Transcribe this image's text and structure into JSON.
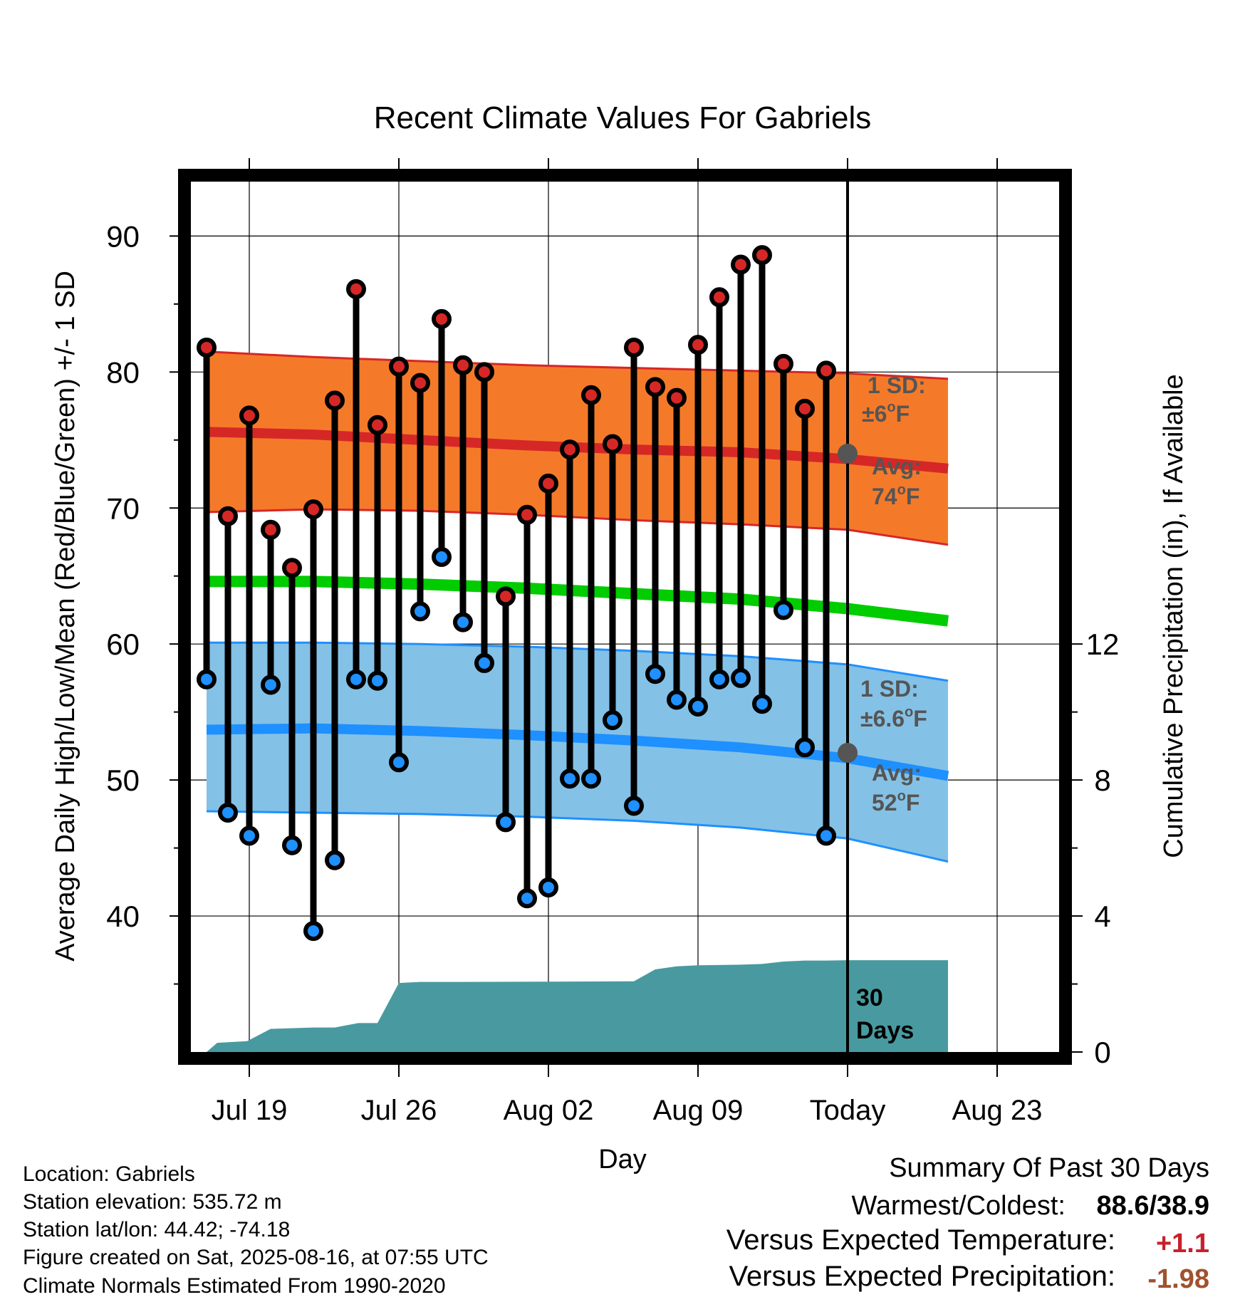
{
  "chart_data": {
    "type": "line",
    "title": "Recent Climate Values For Gabriels",
    "xlabel": "Day",
    "ylabel": "Average Daily High/Low/Mean (Red/Blue/Green) +/- 1 SD",
    "y2label": "Cumulative Precipitation (in), If Available",
    "ylim": [
      30,
      94
    ],
    "y2lim": [
      0,
      18
    ],
    "xlim": [
      0,
      34.7
    ],
    "grid": true,
    "x_ticks": [
      {
        "x": 2,
        "label": "Jul 19"
      },
      {
        "x": 9,
        "label": "Jul 26"
      },
      {
        "x": 16,
        "label": "Aug 02"
      },
      {
        "x": 23,
        "label": "Aug 09"
      },
      {
        "x": 30,
        "label": "Today"
      },
      {
        "x": 37,
        "label": "Aug 23"
      }
    ],
    "y_ticks": [
      40,
      50,
      60,
      70,
      80,
      90
    ],
    "y2_ticks": [
      0,
      4,
      8,
      12
    ],
    "today_x": 30,
    "daily": {
      "x": [
        0,
        1,
        2,
        3,
        4,
        5,
        6,
        7,
        8,
        9,
        10,
        11,
        12,
        13,
        14,
        15,
        16,
        17,
        18,
        19,
        20,
        21,
        22,
        23,
        24,
        25,
        26,
        27,
        28,
        29
      ],
      "highs": [
        81.8,
        69.4,
        76.8,
        68.4,
        65.6,
        69.9,
        77.9,
        86.1,
        76.1,
        80.4,
        79.2,
        83.9,
        80.5,
        80.0,
        63.5,
        69.5,
        71.8,
        74.3,
        78.3,
        74.7,
        81.8,
        78.9,
        78.1,
        82.0,
        85.5,
        87.9,
        88.6,
        80.6,
        77.3,
        80.1
      ],
      "lows": [
        57.4,
        47.6,
        45.9,
        57.0,
        45.2,
        38.9,
        44.1,
        57.4,
        57.3,
        51.3,
        62.4,
        66.4,
        61.6,
        58.6,
        46.9,
        41.3,
        42.1,
        50.1,
        50.1,
        54.4,
        48.1,
        57.8,
        55.9,
        55.4,
        57.4,
        57.5,
        55.6,
        62.5,
        52.4,
        45.9
      ]
    },
    "normals": {
      "x": [
        0,
        5,
        10,
        15,
        20,
        25,
        30,
        34.7
      ],
      "avg_high": [
        75.6,
        75.4,
        75.0,
        74.6,
        74.3,
        74.1,
        73.6,
        72.9
      ],
      "high_plus_sd": [
        81.5,
        81.1,
        80.8,
        80.5,
        80.3,
        80.1,
        79.9,
        79.5
      ],
      "high_minus_sd": [
        69.7,
        69.9,
        69.8,
        69.5,
        69.1,
        68.8,
        68.4,
        67.3
      ],
      "mean": [
        64.6,
        64.6,
        64.4,
        64.1,
        63.7,
        63.3,
        62.6,
        61.7
      ],
      "avg_low": [
        53.7,
        53.8,
        53.6,
        53.3,
        52.9,
        52.4,
        51.6,
        50.3
      ],
      "low_plus_sd": [
        60.1,
        60.1,
        60.0,
        59.8,
        59.5,
        59.1,
        58.5,
        57.3
      ],
      "low_minus_sd": [
        47.7,
        47.6,
        47.5,
        47.3,
        47.0,
        46.5,
        45.7,
        44.0
      ]
    },
    "precip_cumulative": {
      "x": [
        0,
        0.5,
        1.9,
        3,
        5,
        6,
        7.1,
        8,
        9,
        10,
        12,
        16,
        20,
        21,
        22,
        23,
        25,
        26,
        27,
        28,
        29,
        30,
        34.7
      ],
      "values": [
        0.0,
        0.27,
        0.32,
        0.68,
        0.72,
        0.72,
        0.85,
        0.85,
        2.03,
        2.06,
        2.06,
        2.07,
        2.08,
        2.43,
        2.52,
        2.55,
        2.57,
        2.59,
        2.66,
        2.69,
        2.69,
        2.7,
        2.7
      ]
    },
    "annotations": {
      "high_sd_label_1": "1 SD:",
      "high_sd_label_2": "±6",
      "high_sd_label_unit": "F",
      "high_avg_label_1": "Avg:",
      "high_avg_label_2": "74",
      "high_avg_label_unit": "F",
      "low_sd_label_1": "1 SD:",
      "low_sd_label_2": "±6.6",
      "low_sd_label_unit": "F",
      "low_avg_label_1": "Avg:",
      "low_avg_label_2": "52",
      "low_avg_label_unit": "F",
      "deg": "o",
      "precip_label_1": "30",
      "precip_label_2": "Days",
      "today_high_avg": 74.0,
      "today_low_avg": 52.0
    },
    "colors": {
      "high_band": "#f47a2a",
      "high_line": "#d62727",
      "low_band": "#84c1e6",
      "low_line": "#1e90ff",
      "mean_line": "#00cc00",
      "precip_fill": "#489aa0",
      "high_dot": "#d62727",
      "low_dot": "#1e90ff",
      "annotation": "#555555",
      "today_dot": "#555555"
    }
  },
  "footer": {
    "location": "Location: Gabriels",
    "elevation": "Station elevation: 535.72 m",
    "latlon": "Station lat/lon: 44.42; -74.18",
    "created": "Figure created on Sat, 2025-08-16, at 07:55 UTC",
    "normals": "Climate Normals Estimated From 1990-2020"
  },
  "summary": {
    "title": "Summary Of Past 30 Days",
    "warm_cold_label": "Warmest/Coldest:",
    "warm_cold_value": "88.6/38.9",
    "temp_label": "Versus Expected Temperature:",
    "temp_value": "+1.1",
    "precip_label": "Versus Expected Precipitation:",
    "precip_value": "-1.98",
    "temp_color": "#c8202a",
    "precip_color": "#a0522d"
  }
}
